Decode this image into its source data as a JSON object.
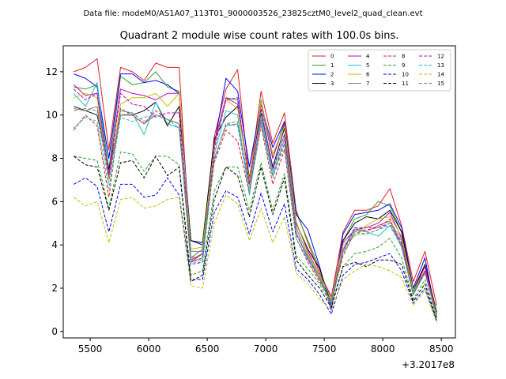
{
  "file_caption": "Data file: modeM0/AS1A07_113T01_9000003526_23825cztM0_level2_quad_clean.evt",
  "chart_data": {
    "type": "line",
    "title": "Quadrant 2 module wise count rates with 100.0s bins.",
    "xlabel": "",
    "ylabel": "",
    "x_offset_label": "+3.2017e8",
    "xlim": [
      5270,
      8620
    ],
    "ylim": [
      -0.3,
      13.2
    ],
    "x_ticks": [
      5500,
      6000,
      6500,
      7000,
      7500,
      8000,
      8500
    ],
    "y_ticks": [
      0,
      2,
      4,
      6,
      8,
      10,
      12
    ],
    "grid": false,
    "legend_position": "top-right",
    "legend_columns": 4,
    "x": [
      5360,
      5460,
      5560,
      5660,
      5760,
      5860,
      5960,
      6060,
      6160,
      6260,
      6360,
      6460,
      6560,
      6660,
      6760,
      6860,
      6960,
      7060,
      7160,
      7260,
      7360,
      7460,
      7560,
      7660,
      7760,
      7860,
      7960,
      8060,
      8160,
      8260,
      8360,
      8460
    ],
    "series": [
      {
        "name": "0",
        "color": "#e41a1c",
        "dash": "solid",
        "values": [
          12.0,
          12.2,
          12.6,
          8.4,
          12.2,
          12.0,
          11.6,
          12.4,
          12.2,
          12.2,
          3.3,
          3.6,
          9.0,
          11.2,
          12.1,
          7.0,
          11.1,
          8.7,
          10.1,
          5.6,
          4.1,
          2.7,
          1.6,
          4.6,
          5.6,
          5.6,
          5.8,
          6.6,
          4.9,
          2.3,
          3.7,
          1.2
        ]
      },
      {
        "name": "1",
        "color": "#2ca02c",
        "dash": "solid",
        "values": [
          11.3,
          11.2,
          11.4,
          7.5,
          11.8,
          11.4,
          11.5,
          12.0,
          11.3,
          11.1,
          3.4,
          3.8,
          8.7,
          10.8,
          10.7,
          6.8,
          10.7,
          8.0,
          9.7,
          5.5,
          4.2,
          2.9,
          1.3,
          4.2,
          5.2,
          5.4,
          6.0,
          5.8,
          4.6,
          1.9,
          3.0,
          0.9
        ]
      },
      {
        "name": "2",
        "color": "#0000ff",
        "dash": "solid",
        "values": [
          11.9,
          11.7,
          11.3,
          8.0,
          11.9,
          11.9,
          11.5,
          11.6,
          11.4,
          11.0,
          4.2,
          4.0,
          8.6,
          11.7,
          11.1,
          7.6,
          10.5,
          8.5,
          9.7,
          5.4,
          4.7,
          3.0,
          1.0,
          4.5,
          5.4,
          5.5,
          5.6,
          5.9,
          4.8,
          2.0,
          3.4,
          0.6
        ]
      },
      {
        "name": "3",
        "color": "#000000",
        "dash": "solid",
        "values": [
          10.4,
          10.2,
          10.0,
          7.5,
          10.0,
          10.0,
          10.2,
          10.6,
          9.5,
          10.4,
          4.2,
          4.1,
          8.9,
          9.9,
          10.4,
          7.1,
          10.1,
          7.6,
          9.4,
          5.0,
          3.8,
          2.9,
          1.2,
          4.2,
          5.0,
          5.3,
          5.2,
          5.6,
          4.6,
          1.9,
          3.1,
          0.9
        ]
      },
      {
        "name": "4",
        "color": "#bf00bf",
        "dash": "solid",
        "values": [
          11.4,
          10.9,
          11.0,
          7.3,
          11.2,
          11.0,
          10.9,
          10.7,
          11.0,
          11.0,
          3.2,
          3.6,
          8.7,
          10.8,
          10.5,
          7.0,
          10.5,
          8.0,
          9.6,
          5.0,
          3.7,
          2.6,
          1.6,
          4.1,
          4.7,
          4.8,
          5.0,
          5.5,
          4.3,
          1.8,
          3.0,
          0.8
        ]
      },
      {
        "name": "5",
        "color": "#17becf",
        "dash": "solid",
        "values": [
          11.0,
          10.4,
          11.5,
          7.1,
          10.2,
          10.1,
          9.1,
          10.6,
          9.6,
          9.4,
          3.3,
          3.3,
          8.2,
          10.2,
          10.0,
          6.3,
          10.0,
          7.4,
          9.1,
          4.6,
          3.3,
          2.6,
          1.2,
          3.8,
          4.8,
          4.6,
          4.4,
          4.9,
          4.0,
          1.8,
          2.8,
          0.7
        ]
      },
      {
        "name": "6",
        "color": "#bfbf00",
        "dash": "solid",
        "values": [
          10.8,
          11.0,
          10.8,
          7.0,
          10.5,
          10.8,
          10.8,
          11.0,
          10.4,
          11.0,
          3.8,
          3.9,
          8.5,
          10.7,
          10.3,
          7.0,
          10.6,
          8.2,
          9.5,
          5.1,
          3.6,
          2.6,
          1.5,
          4.0,
          4.4,
          4.9,
          5.2,
          5.3,
          4.4,
          1.9,
          2.8,
          0.8
        ]
      },
      {
        "name": "7",
        "color": "#7f7f7f",
        "dash": "solid",
        "values": [
          10.3,
          10.2,
          10.4,
          7.2,
          10.0,
          10.0,
          9.6,
          10.0,
          9.8,
          9.6,
          3.7,
          3.7,
          8.0,
          9.5,
          9.6,
          6.8,
          9.8,
          7.2,
          8.9,
          4.8,
          3.5,
          2.5,
          1.3,
          3.8,
          4.7,
          4.6,
          4.9,
          5.1,
          4.2,
          1.7,
          2.8,
          0.8
        ]
      },
      {
        "name": "8",
        "color": "#e41a1c",
        "dash": "dashed",
        "values": [
          9.3,
          10.0,
          9.5,
          6.2,
          10.3,
          10.0,
          9.6,
          10.2,
          9.8,
          9.6,
          3.2,
          3.4,
          7.8,
          9.3,
          8.8,
          6.4,
          9.5,
          6.8,
          8.4,
          4.3,
          3.2,
          2.3,
          1.4,
          3.5,
          4.6,
          4.7,
          4.8,
          5.2,
          3.9,
          1.7,
          2.8,
          0.7
        ]
      },
      {
        "name": "9",
        "color": "#2ca02c",
        "dash": "dashed",
        "values": [
          8.1,
          8.0,
          7.9,
          5.7,
          8.3,
          8.2,
          7.4,
          8.1,
          8.1,
          7.7,
          2.6,
          2.8,
          6.5,
          7.6,
          7.6,
          5.6,
          7.8,
          5.6,
          7.3,
          3.5,
          2.9,
          2.2,
          1.2,
          3.0,
          3.6,
          3.7,
          3.9,
          4.3,
          3.4,
          1.5,
          2.4,
          0.6
        ]
      },
      {
        "name": "10",
        "color": "#0000ff",
        "dash": "dashed",
        "values": [
          6.8,
          7.1,
          6.7,
          4.6,
          6.8,
          6.8,
          6.2,
          6.3,
          7.1,
          6.3,
          2.4,
          2.4,
          5.5,
          6.5,
          6.2,
          4.5,
          6.4,
          4.6,
          5.9,
          2.9,
          2.4,
          1.7,
          0.8,
          2.6,
          3.1,
          3.2,
          3.4,
          3.6,
          2.8,
          1.3,
          2.0,
          0.5
        ]
      },
      {
        "name": "11",
        "color": "#000000",
        "dash": "dashed",
        "values": [
          8.1,
          7.7,
          7.6,
          5.6,
          7.8,
          7.9,
          7.1,
          8.1,
          7.2,
          7.6,
          2.3,
          2.6,
          6.1,
          7.6,
          7.2,
          5.3,
          7.6,
          5.4,
          7.1,
          3.3,
          2.6,
          2.0,
          1.1,
          3.0,
          3.2,
          3.0,
          3.3,
          3.3,
          3.1,
          1.4,
          2.2,
          0.5
        ]
      },
      {
        "name": "12",
        "color": "#bf00bf",
        "dash": "dashed",
        "values": [
          11.2,
          10.7,
          11.0,
          7.2,
          11.0,
          10.5,
          10.4,
          9.9,
          10.1,
          10.1,
          3.1,
          3.2,
          8.4,
          10.7,
          10.8,
          6.8,
          10.3,
          7.5,
          9.1,
          4.5,
          3.4,
          2.4,
          1.3,
          3.7,
          4.8,
          4.8,
          4.8,
          5.0,
          4.1,
          1.7,
          2.8,
          0.7
        ]
      },
      {
        "name": "13",
        "color": "#17becf",
        "dash": "dashed",
        "values": [
          9.4,
          9.9,
          9.7,
          6.6,
          9.9,
          9.7,
          9.9,
          10.0,
          9.8,
          9.4,
          3.2,
          3.2,
          7.9,
          9.6,
          9.5,
          6.4,
          9.6,
          7.1,
          8.6,
          4.3,
          3.3,
          2.4,
          1.3,
          3.6,
          4.5,
          4.5,
          4.7,
          4.9,
          3.9,
          1.7,
          2.7,
          0.7
        ]
      },
      {
        "name": "14",
        "color": "#bfbf00",
        "dash": "dashed",
        "values": [
          6.2,
          5.8,
          6.0,
          4.1,
          6.1,
          6.2,
          5.7,
          5.8,
          6.1,
          6.2,
          2.1,
          2.0,
          5.0,
          6.3,
          5.9,
          4.2,
          5.7,
          4.1,
          5.3,
          2.7,
          2.2,
          1.5,
          1.0,
          2.4,
          2.8,
          3.1,
          3.0,
          2.8,
          2.5,
          1.2,
          1.9,
          0.4
        ]
      },
      {
        "name": "15",
        "color": "#7f7f7f",
        "dash": "dashed",
        "values": [
          10.2,
          10.3,
          10.2,
          6.9,
          10.0,
          10.1,
          9.7,
          10.0,
          9.8,
          9.6,
          3.4,
          3.5,
          7.9,
          9.6,
          9.7,
          6.6,
          9.7,
          7.2,
          8.7,
          4.6,
          3.4,
          2.4,
          1.2,
          3.7,
          4.6,
          4.5,
          4.7,
          5.0,
          4.0,
          1.7,
          2.7,
          0.7
        ]
      }
    ]
  }
}
